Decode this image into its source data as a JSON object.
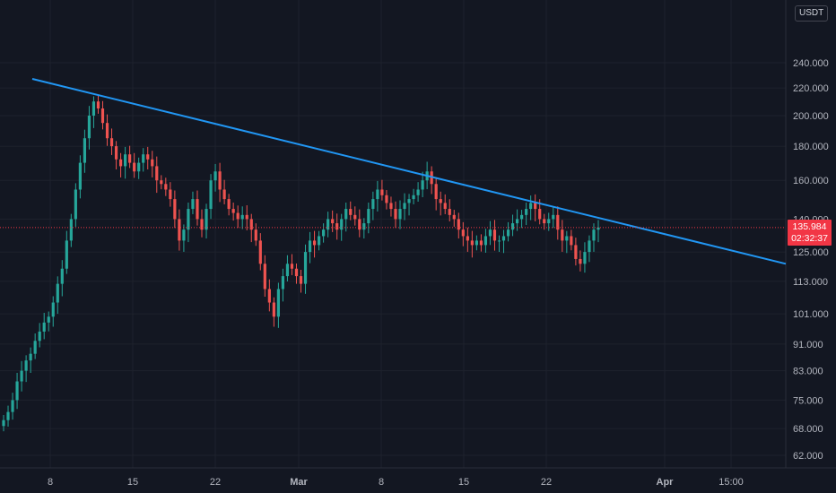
{
  "header": {
    "currency": "USDT"
  },
  "last_price": {
    "price": "135.984",
    "countdown": "02:32:37"
  },
  "colors": {
    "background": "#131722",
    "up": "#26a69a",
    "down": "#ef5350",
    "trendline": "#2196f3",
    "price_line": "#f23645",
    "grid": "#1e222d",
    "text": "#b2b5be"
  },
  "chart_data": {
    "type": "candlestick",
    "y_scale": "log",
    "ylim": [
      58,
      280
    ],
    "y_ticks": [
      "62.000",
      "68.000",
      "75.000",
      "83.000",
      "91.000",
      "101.000",
      "113.000",
      "125.000",
      "140.000",
      "160.000",
      "180.000",
      "200.000",
      "220.000",
      "240.000"
    ],
    "x_ticks": [
      "8",
      "15",
      "22",
      "Mar",
      "8",
      "15",
      "22",
      "Apr",
      "15:00"
    ],
    "grid": true,
    "trendline": {
      "from": [
        0,
        227
      ],
      "to": [
        1,
        120
      ]
    },
    "last_price": 135.984,
    "closes": [
      70,
      72,
      75,
      80,
      83,
      86,
      88,
      92,
      95,
      98,
      100,
      105,
      112,
      118,
      130,
      140,
      155,
      170,
      185,
      200,
      210,
      205,
      195,
      185,
      180,
      172,
      168,
      175,
      170,
      165,
      170,
      175,
      172,
      168,
      160,
      158,
      155,
      150,
      140,
      130,
      135,
      145,
      150,
      140,
      135,
      145,
      160,
      165,
      155,
      150,
      145,
      143,
      140,
      142,
      140,
      135,
      130,
      120,
      110,
      105,
      100,
      110,
      115,
      120,
      118,
      115,
      112,
      125,
      130,
      128,
      132,
      135,
      140,
      138,
      135,
      140,
      145,
      142,
      140,
      135,
      138,
      145,
      150,
      155,
      152,
      148,
      145,
      140,
      145,
      148,
      150,
      152,
      155,
      160,
      165,
      158,
      150,
      148,
      145,
      142,
      140,
      135,
      132,
      130,
      128,
      130,
      128,
      132,
      135,
      130,
      130,
      132,
      135,
      138,
      140,
      142,
      145,
      148,
      145,
      140,
      138,
      140,
      142,
      135,
      130,
      132,
      128,
      122,
      120,
      125,
      130,
      135,
      136
    ]
  }
}
